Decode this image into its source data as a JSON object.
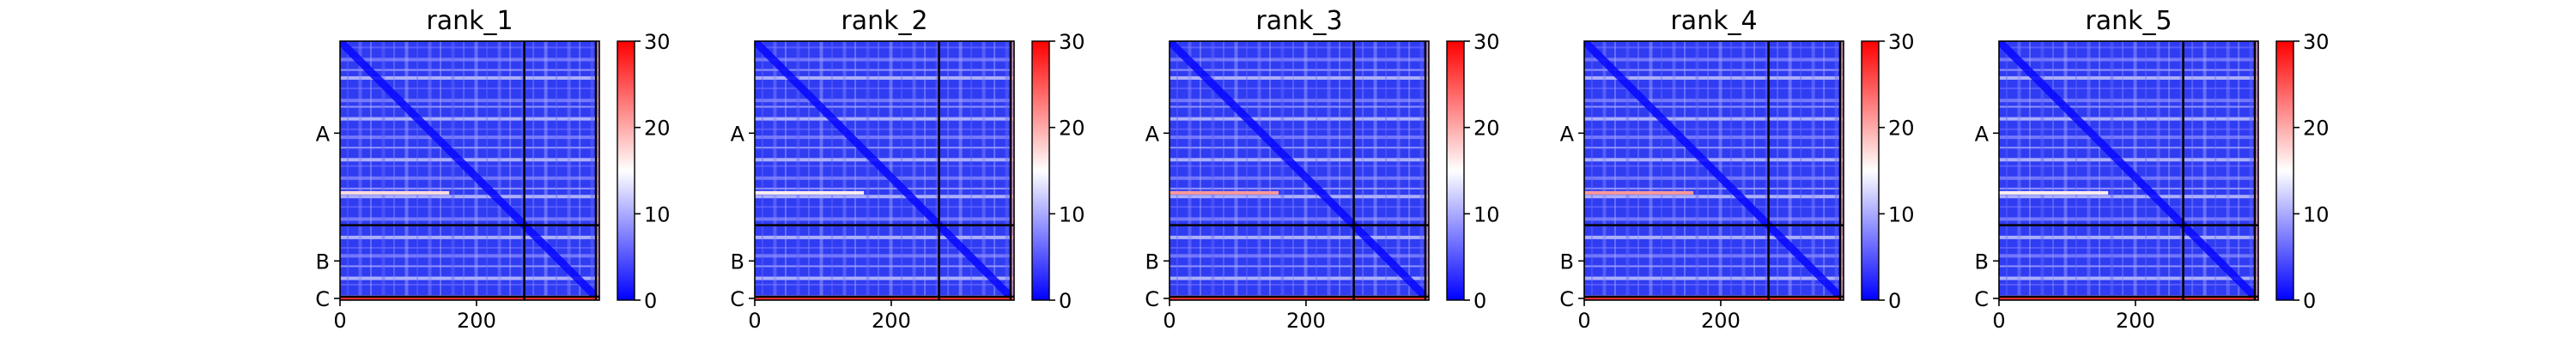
{
  "chart_data": [
    {
      "type": "heatmap",
      "title": "rank_1",
      "xlabel": "",
      "ylabel": "",
      "xlim": [
        0,
        380
      ],
      "x_ticks": [
        "0",
        "200"
      ],
      "y_ticks": [
        "A",
        "B",
        "C"
      ],
      "chain_boundaries": [
        270,
        375
      ],
      "colorbar": {
        "vmin": 0,
        "vmax": 30,
        "ticks": [
          "0",
          "10",
          "20",
          "30"
        ],
        "colors": [
          "#0000ff",
          "#ffffff",
          "#ff0000"
        ]
      },
      "highlight_rows": [
        {
          "row": 220,
          "value": 17
        }
      ]
    },
    {
      "type": "heatmap",
      "title": "rank_2",
      "xlabel": "",
      "ylabel": "",
      "xlim": [
        0,
        380
      ],
      "x_ticks": [
        "0",
        "200"
      ],
      "y_ticks": [
        "A",
        "B",
        "C"
      ],
      "chain_boundaries": [
        270,
        375
      ],
      "colorbar": {
        "vmin": 0,
        "vmax": 30,
        "ticks": [
          "0",
          "10",
          "20",
          "30"
        ],
        "colors": [
          "#0000ff",
          "#ffffff",
          "#ff0000"
        ]
      },
      "highlight_rows": [
        {
          "row": 220,
          "value": 16
        }
      ]
    },
    {
      "type": "heatmap",
      "title": "rank_3",
      "xlabel": "",
      "ylabel": "",
      "xlim": [
        0,
        380
      ],
      "x_ticks": [
        "0",
        "200"
      ],
      "y_ticks": [
        "A",
        "B",
        "C"
      ],
      "chain_boundaries": [
        270,
        375
      ],
      "colorbar": {
        "vmin": 0,
        "vmax": 30,
        "ticks": [
          "0",
          "10",
          "20",
          "30"
        ],
        "colors": [
          "#0000ff",
          "#ffffff",
          "#ff0000"
        ]
      },
      "highlight_rows": [
        {
          "row": 220,
          "value": 21
        }
      ]
    },
    {
      "type": "heatmap",
      "title": "rank_4",
      "xlabel": "",
      "ylabel": "",
      "xlim": [
        0,
        380
      ],
      "x_ticks": [
        "0",
        "200"
      ],
      "y_ticks": [
        "A",
        "B",
        "C"
      ],
      "chain_boundaries": [
        270,
        375
      ],
      "colorbar": {
        "vmin": 0,
        "vmax": 30,
        "ticks": [
          "0",
          "10",
          "20",
          "30"
        ],
        "colors": [
          "#0000ff",
          "#ffffff",
          "#ff0000"
        ]
      },
      "highlight_rows": [
        {
          "row": 220,
          "value": 21
        }
      ]
    },
    {
      "type": "heatmap",
      "title": "rank_5",
      "xlabel": "",
      "ylabel": "",
      "xlim": [
        0,
        380
      ],
      "x_ticks": [
        "0",
        "200"
      ],
      "y_ticks": [
        "A",
        "B",
        "C"
      ],
      "chain_boundaries": [
        270,
        375
      ],
      "colorbar": {
        "vmin": 0,
        "vmax": 30,
        "ticks": [
          "0",
          "10",
          "20",
          "30"
        ],
        "colors": [
          "#0000ff",
          "#ffffff",
          "#ff0000"
        ]
      },
      "highlight_rows": [
        {
          "row": 220,
          "value": 16
        }
      ]
    }
  ]
}
